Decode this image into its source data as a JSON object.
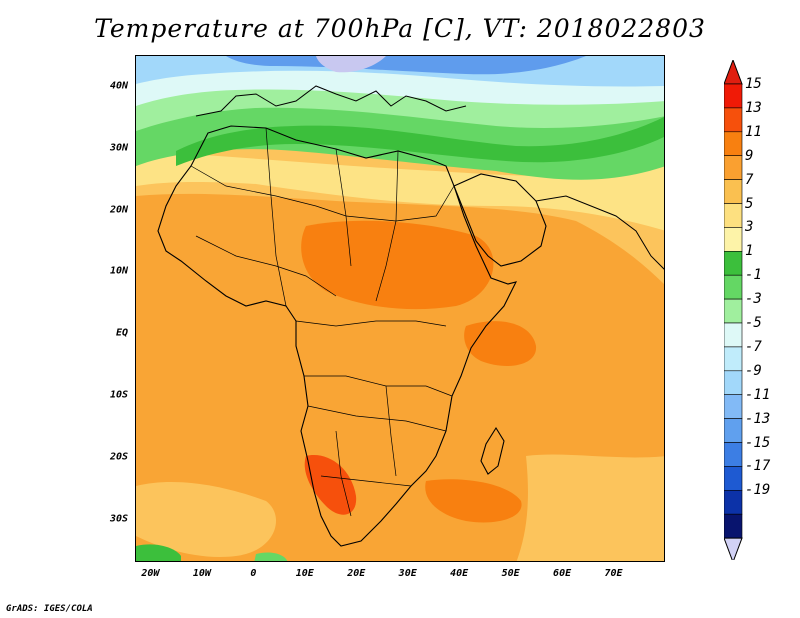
{
  "title": "Temperature at 700hPa [C], VT: 2018022803",
  "credit": "GrADS: IGES/COLA",
  "map": {
    "region": "Africa",
    "lon_range": [
      -23,
      80
    ],
    "lat_range": [
      -37,
      45
    ],
    "lat_ticks": [
      {
        "value": 40,
        "label": "40N"
      },
      {
        "value": 30,
        "label": "30N"
      },
      {
        "value": 20,
        "label": "20N"
      },
      {
        "value": 10,
        "label": "10N"
      },
      {
        "value": 0,
        "label": "EQ"
      },
      {
        "value": -10,
        "label": "10S"
      },
      {
        "value": -20,
        "label": "20S"
      },
      {
        "value": -30,
        "label": "30S"
      }
    ],
    "lon_ticks": [
      {
        "value": -20,
        "label": "20W"
      },
      {
        "value": -10,
        "label": "10W"
      },
      {
        "value": 0,
        "label": "0"
      },
      {
        "value": 10,
        "label": "10E"
      },
      {
        "value": 20,
        "label": "20E"
      },
      {
        "value": 30,
        "label": "30E"
      },
      {
        "value": 40,
        "label": "40E"
      },
      {
        "value": 50,
        "label": "50E"
      },
      {
        "value": 60,
        "label": "60E"
      },
      {
        "value": 70,
        "label": "70E"
      }
    ]
  },
  "colorbar": {
    "labels": [
      "15",
      "13",
      "11",
      "9",
      "7",
      "5",
      "3",
      "1",
      "-1",
      "-3",
      "-5",
      "-7",
      "-9",
      "-11",
      "-13",
      "-15",
      "-17",
      "-19"
    ],
    "colors": [
      "#f01a06",
      "#f6500c",
      "#f88010",
      "#faa030",
      "#fac050",
      "#fde080",
      "#fdf3a8",
      "#3cbf3c",
      "#64d764",
      "#a0ef9e",
      "#def9f7",
      "#c0ecfb",
      "#a2d8fa",
      "#82baf6",
      "#60a0ee",
      "#3c7ee4",
      "#1e5ad2",
      "#0c32a8",
      "#08146e"
    ],
    "top_arrow_color": "#e01e10",
    "bottom_arrow_color": "#d2d2f5"
  }
}
